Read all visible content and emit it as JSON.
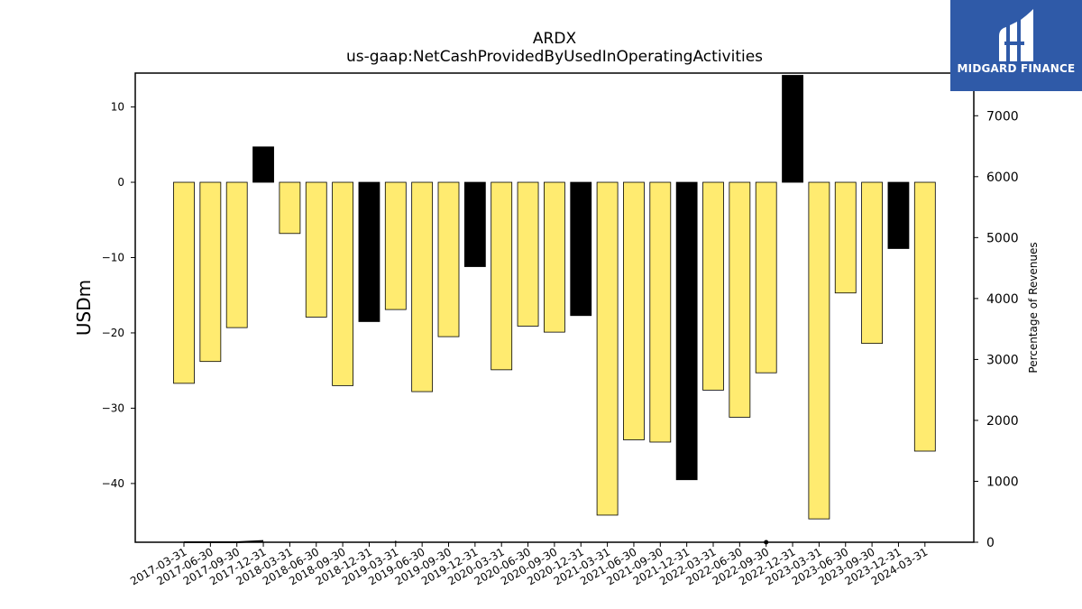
{
  "chart_data": {
    "type": "bar",
    "title": "ARDX",
    "subtitle": "us-gaap:NetCashProvidedByUsedInOperatingActivities",
    "ylabel": "USDm",
    "y2label": "Percentage of Revenues",
    "ylim": [
      -47.8,
      14.5
    ],
    "y2lim": [
      0,
      7700
    ],
    "yticks": [
      10,
      0,
      -10,
      -20,
      -30,
      -40
    ],
    "y2ticks": [
      0,
      1000,
      2000,
      3000,
      4000,
      5000,
      6000,
      7000
    ],
    "categories": [
      "2017-03-31",
      "2017-06-30",
      "2017-09-30",
      "2017-12-31",
      "2018-03-31",
      "2018-06-30",
      "2018-09-30",
      "2018-12-31",
      "2019-03-31",
      "2019-06-30",
      "2019-09-30",
      "2019-12-31",
      "2020-03-31",
      "2020-06-30",
      "2020-09-30",
      "2020-12-31",
      "2021-03-31",
      "2021-06-30",
      "2021-09-30",
      "2021-12-31",
      "2022-03-31",
      "2022-06-30",
      "2022-09-30",
      "2022-12-31",
      "2023-03-31",
      "2023-06-30",
      "2023-09-30",
      "2023-12-31",
      "2024-03-31"
    ],
    "values": [
      -26.7,
      -23.8,
      -19.3,
      4.7,
      -6.8,
      -17.9,
      -27.0,
      -18.5,
      -16.9,
      -27.8,
      -20.5,
      -11.2,
      -24.9,
      -19.1,
      -19.9,
      -17.7,
      -44.2,
      -34.2,
      -34.5,
      -39.5,
      -27.6,
      -31.2,
      -25.3,
      14.2,
      -44.7,
      -14.7,
      -21.4,
      -8.8,
      -35.7
    ],
    "highlight_colors": {
      "quarter": "#ffeb70",
      "year_end": "#000000"
    },
    "bar_types": [
      "q",
      "q",
      "q",
      "y",
      "q",
      "q",
      "q",
      "y",
      "q",
      "q",
      "q",
      "y",
      "q",
      "q",
      "q",
      "y",
      "q",
      "q",
      "q",
      "y",
      "q",
      "q",
      "q",
      "y",
      "q",
      "q",
      "q",
      "y",
      "q"
    ],
    "percentage_line": {
      "categories": [
        "2017-03-31",
        "2017-06-30",
        "2017-09-30",
        "2017-12-31",
        "2019-03-31",
        "2022-09-30"
      ],
      "values": [
        0,
        0,
        0,
        20,
        10,
        0
      ]
    },
    "grid": false,
    "legend": "none"
  },
  "logo": {
    "text": "MIDGARD FINANCE",
    "bg": "#2f5aa8"
  }
}
